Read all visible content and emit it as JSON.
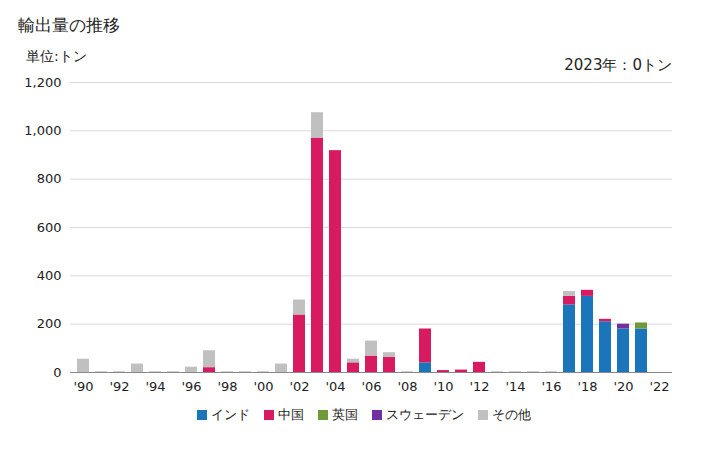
{
  "chart_data": {
    "type": "bar",
    "title": "輸出量の推移",
    "y_label": "単位:トン",
    "annotation": "2023年：0トン",
    "stacked": true,
    "grid": true,
    "categories": [
      "'90",
      null,
      "'92",
      null,
      "'94",
      null,
      "'96",
      null,
      "'98",
      null,
      "'00",
      null,
      "'02",
      null,
      "'04",
      null,
      "'06",
      null,
      "'08",
      null,
      "'10",
      null,
      "'12",
      null,
      "'14",
      null,
      "'16",
      null,
      "'18",
      null,
      "'20",
      null,
      "'22"
    ],
    "series": [
      {
        "name": "インド",
        "color": "#1b75bb",
        "values": [
          0,
          0,
          0,
          0,
          0,
          0,
          0,
          0,
          0,
          0,
          0,
          0,
          0,
          0,
          0,
          0,
          0,
          0,
          0,
          40,
          0,
          0,
          0,
          0,
          0,
          0,
          0,
          280,
          315,
          210,
          180,
          180,
          0
        ]
      },
      {
        "name": "中国",
        "color": "#d81b60",
        "values": [
          0,
          0,
          0,
          0,
          0,
          0,
          0,
          20,
          0,
          0,
          0,
          0,
          238,
          970,
          918,
          40,
          68,
          62,
          0,
          140,
          8,
          10,
          42,
          0,
          0,
          0,
          0,
          35,
          25,
          10,
          0,
          0,
          0
        ]
      },
      {
        "name": "英国",
        "color": "#6f9a3a",
        "values": [
          0,
          0,
          0,
          0,
          0,
          0,
          0,
          0,
          0,
          0,
          0,
          0,
          0,
          0,
          0,
          0,
          0,
          0,
          0,
          0,
          0,
          0,
          0,
          0,
          0,
          0,
          0,
          0,
          0,
          0,
          0,
          25,
          0
        ]
      },
      {
        "name": "スウェーデン",
        "color": "#7030a0",
        "values": [
          0,
          0,
          0,
          0,
          0,
          0,
          0,
          0,
          0,
          0,
          0,
          0,
          0,
          0,
          0,
          0,
          0,
          0,
          0,
          0,
          0,
          0,
          0,
          0,
          0,
          0,
          0,
          0,
          0,
          0,
          20,
          0,
          0
        ]
      },
      {
        "name": "その他",
        "color": "#c0c0c0",
        "values": [
          55,
          3,
          3,
          35,
          3,
          3,
          22,
          70,
          3,
          3,
          3,
          35,
          62,
          105,
          0,
          15,
          62,
          20,
          3,
          0,
          0,
          0,
          0,
          3,
          3,
          3,
          3,
          20,
          0,
          0,
          0,
          0,
          0
        ]
      }
    ],
    "ylim": [
      0,
      1200
    ],
    "yticks": [
      0,
      200,
      400,
      600,
      800,
      {
        "value": 1000,
        "label": "1,000"
      },
      {
        "value": 1200,
        "label": "1,200"
      }
    ]
  }
}
